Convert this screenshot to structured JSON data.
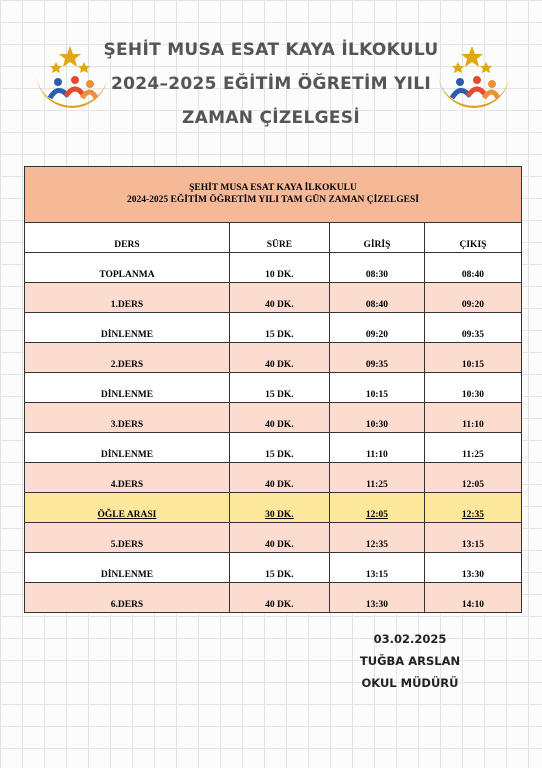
{
  "header": {
    "lines": [
      "ŞEHİT MUSA ESAT KAYA İLKOKULU",
      "2024–2025 EĞİTİM ÖĞRETİM YILI",
      "ZAMAN ÇİZELGESİ"
    ]
  },
  "table": {
    "title": [
      "ŞEHİT MUSA ESAT KAYA İLKOKULU",
      "2024-2025 EĞİTİM ÖĞRETİM YILI TAM GÜN ZAMAN ÇİZELGESİ"
    ],
    "columns": [
      "DERS",
      "SÜRE",
      "GİRİŞ",
      "ÇIKIŞ"
    ],
    "rows": [
      [
        "TOPLANMA",
        "10 DK.",
        "08:30",
        "08:40"
      ],
      [
        "1.DERS",
        "40 DK.",
        "08:40",
        "09:20"
      ],
      [
        "DİNLENME",
        "15 DK.",
        "09:20",
        "09:35"
      ],
      [
        "2.DERS",
        "40 DK.",
        "09:35",
        "10:15"
      ],
      [
        "DİNLENME",
        "15 DK.",
        "10:15",
        "10:30"
      ],
      [
        "3.DERS",
        "40 DK.",
        "10:30",
        "11:10"
      ],
      [
        "DİNLENME",
        "15 DK.",
        "11:10",
        "11:25"
      ],
      [
        "4.DERS",
        "40 DK.",
        "11:25",
        "12:05"
      ],
      [
        "ÖĞLE ARASI",
        "30 DK.",
        "12:05",
        "12:35"
      ],
      [
        "5.DERS",
        "40 DK.",
        "12:35",
        "13:15"
      ],
      [
        "DİNLENME",
        "15 DK.",
        "13:15",
        "13:30"
      ],
      [
        "6.DERS",
        "40 DK.",
        "13:30",
        "14:10"
      ]
    ]
  },
  "signature": {
    "lines": [
      "03.02.2025",
      "TUĞBA ARSLAN",
      "OKUL MÜDÜRÜ"
    ]
  }
}
